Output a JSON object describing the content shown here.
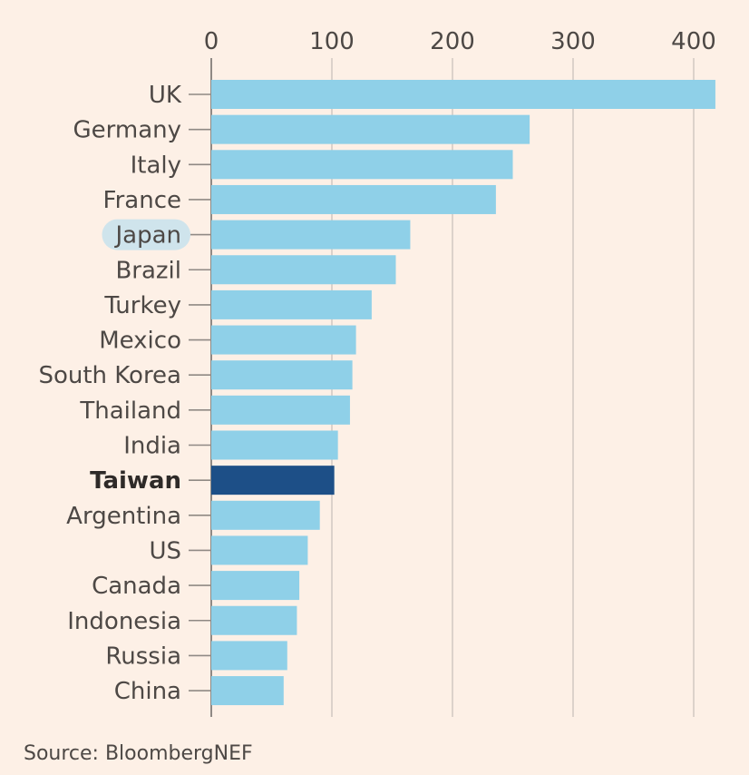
{
  "colors": {
    "background": "#fdf0e6",
    "bar": "#8fd0e8",
    "highlight_bar": "#1d4f87",
    "text": "#4d4845",
    "grid": "#d4cbc4",
    "axis": "#8f8984",
    "label_highlight_pill": "#cfe4ec"
  },
  "chart_data": {
    "type": "bar",
    "orientation": "horizontal",
    "categories": [
      "UK",
      "Germany",
      "Italy",
      "France",
      "Japan",
      "Brazil",
      "Turkey",
      "Mexico",
      "South Korea",
      "Thailand",
      "India",
      "Taiwan",
      "Argentina",
      "US",
      "Canada",
      "Indonesia",
      "Russia",
      "China"
    ],
    "values": [
      418,
      264,
      250,
      236,
      165,
      153,
      133,
      120,
      117,
      115,
      105,
      102,
      90,
      80,
      73,
      71,
      63,
      60
    ],
    "highlighted_category": "Taiwan",
    "circled_category": "Japan",
    "title": "",
    "xlabel": "",
    "ylabel": "",
    "xlim": [
      0,
      420
    ],
    "x_ticks": [
      0,
      100,
      200,
      300,
      400
    ],
    "x_axis_position": "top",
    "grid": true,
    "legend": "none"
  },
  "source": "Source: BloombergNEF"
}
